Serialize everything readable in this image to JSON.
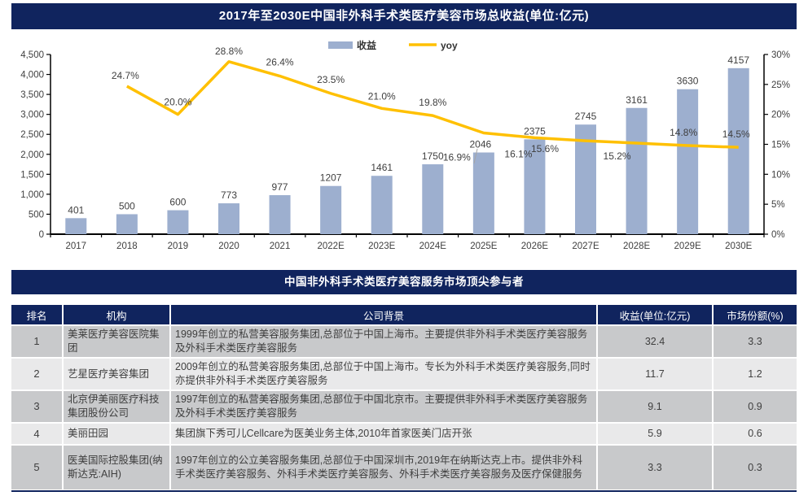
{
  "colors": {
    "navy": "#10245E",
    "bar": "#9DAFCF",
    "line": "#FFC000",
    "text": "#3F3F3F",
    "axis": "#000000",
    "leader": "#A6A6A6",
    "row_dark": "#C8C9CB",
    "row_light": "#E9E9EA"
  },
  "chart_banner": "2017年至2030E中国非外科手术类医疗美容市场总收益(单位:亿元)",
  "chart_data": {
    "type": "bar",
    "combo": "bar+line",
    "title": "2017年至2030E中国非外科手术类医疗美容市场总收益(单位:亿元)",
    "categories": [
      "2017",
      "2018",
      "2019",
      "2020",
      "2021",
      "2022E",
      "2023E",
      "2024E",
      "2025E",
      "2026E",
      "2027E",
      "2028E",
      "2029E",
      "2030E"
    ],
    "series": [
      {
        "name": "收益",
        "type": "bar",
        "axis": "left",
        "values": [
          401,
          500,
          600,
          773,
          977,
          1207,
          1461,
          1750,
          2046,
          2375,
          2745,
          3161,
          3630,
          4157
        ],
        "value_labels": [
          "401",
          "500",
          "600",
          "773",
          "977",
          "1207",
          "1461",
          "1750",
          "2046",
          "2375",
          "2745",
          "3161",
          "3630",
          "4157"
        ]
      },
      {
        "name": "yoy",
        "type": "line",
        "axis": "right",
        "start_index": 1,
        "values": [
          24.7,
          20.0,
          28.8,
          26.4,
          23.5,
          21.0,
          19.8,
          16.9,
          16.1,
          15.6,
          15.2,
          14.8,
          14.5
        ],
        "value_labels": [
          "24.7%",
          "20.0%",
          "28.8%",
          "26.4%",
          "23.5%",
          "21.0%",
          "19.8%",
          "16.9%",
          "16.1%",
          "15.6%",
          "15.2%",
          "14.8%",
          "14.5%"
        ]
      }
    ],
    "ylim_left": [
      0,
      4500
    ],
    "ylim_right": [
      0,
      30
    ],
    "y_left_ticks": [
      "0",
      "500",
      "1,000",
      "1,500",
      "2,000",
      "2,500",
      "3,000",
      "3,500",
      "4,000",
      "4,500"
    ],
    "y_right_ticks": [
      "0%",
      "5%",
      "10%",
      "15%",
      "20%",
      "25%",
      "30%"
    ],
    "grid": false,
    "legend_position": "top-center",
    "legend": [
      {
        "label": "收益",
        "swatch": "bar"
      },
      {
        "label": "yoy",
        "swatch": "line"
      }
    ]
  },
  "table": {
    "title": "中国非外科手术类医疗美容服务市场顶尖参与者",
    "headers": [
      "排名",
      "机构",
      "公司背景",
      "收益(单位:亿元)",
      "市场份额(%)"
    ],
    "rows": [
      {
        "rank": "1",
        "org": "美莱医疗美容医院集团",
        "background": "1999年创立的私营美容服务集团,总部位于中国上海市。主要提供非外科手术类医疗美容服务及外科手术类医疗美容服务",
        "revenue": "32.4",
        "share": "3.3"
      },
      {
        "rank": "2",
        "org": "艺星医疗美容集团",
        "background": "2009年创立的私营美容服务集团,总部位于中国上海市。专长为外科手术类医疗美容服务,同时亦提供非外科手术类医疗美容服务",
        "revenue": "11.7",
        "share": "1.2"
      },
      {
        "rank": "3",
        "org": "北京伊美丽医疗科技集团股份公司",
        "background": "1997年创立的私营美容服务集团,总部位于中国北京市。主要提供非外科手术类医疗美容服务及外科手术类医疗美容服务",
        "revenue": "9.1",
        "share": "0.9"
      },
      {
        "rank": "4",
        "org": "美丽田园",
        "background": "集团旗下秀可儿Cellcare为医美业务主体,2010年首家医美门店开张",
        "revenue": "5.9",
        "share": "0.6"
      },
      {
        "rank": "5",
        "org": "医美国际控股集团(纳斯达克:AIH)",
        "background": "1997年创立的公立美容服务集团,总部位于中国深圳市,2019年在纳斯达克上市。提供非外科手术类医疗美容服务、外科手术类医疗美容服务、外科手术类医疗美容服务及医疗保健服务",
        "revenue": "3.3",
        "share": "0.3"
      }
    ]
  }
}
